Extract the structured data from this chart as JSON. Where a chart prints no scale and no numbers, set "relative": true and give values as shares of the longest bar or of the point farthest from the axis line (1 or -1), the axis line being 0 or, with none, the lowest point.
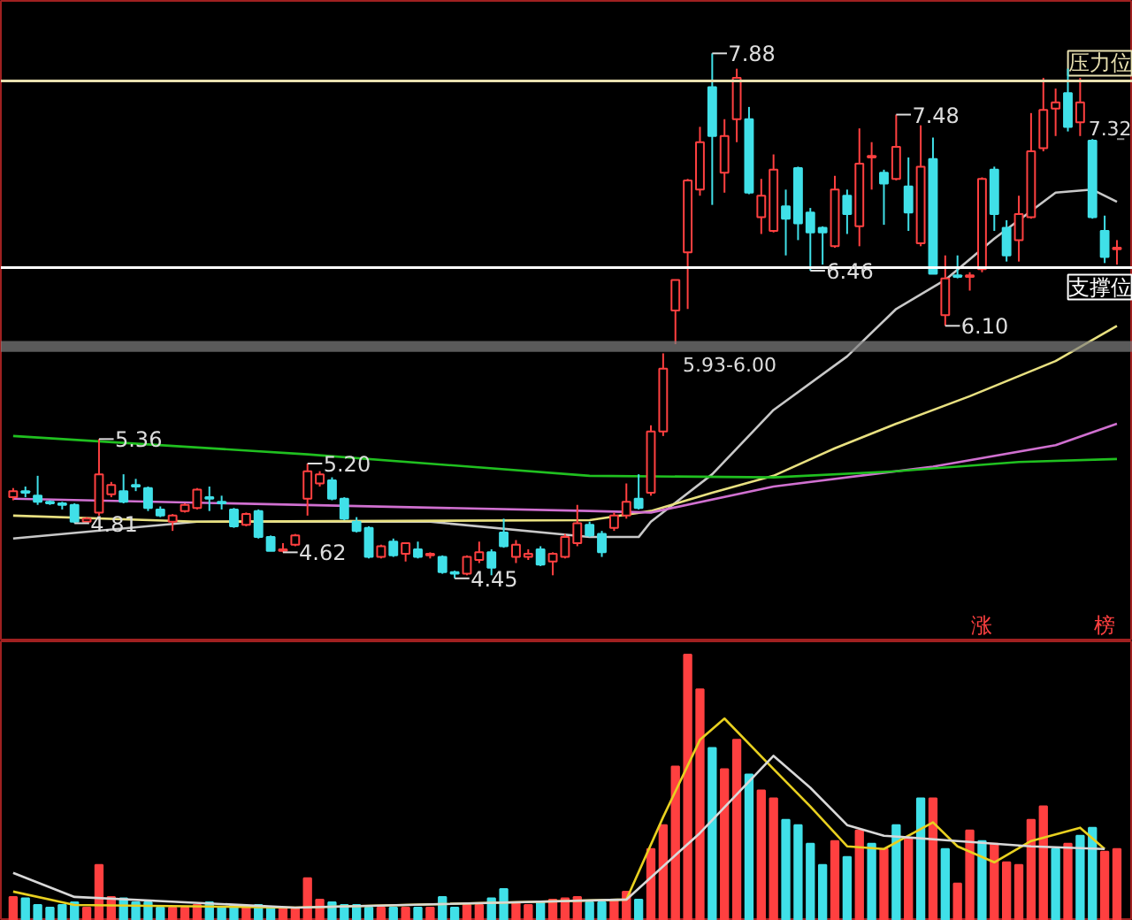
{
  "chart_data": [
    {
      "type": "candlestick",
      "categories": [
        null,
        null,
        null,
        null,
        null,
        null,
        null,
        null,
        null,
        null,
        null,
        null,
        null,
        null,
        null,
        null,
        null,
        null,
        null,
        null,
        null,
        null,
        null,
        null,
        null,
        null,
        null,
        null,
        null,
        null,
        null,
        null,
        null,
        null,
        null,
        null,
        null,
        null,
        null,
        null,
        null,
        null,
        null,
        null,
        null,
        null,
        null,
        null,
        null,
        null,
        null,
        null,
        null,
        null,
        null,
        null,
        null,
        null,
        null,
        null,
        null,
        null,
        null,
        null,
        null,
        null,
        null,
        null,
        null,
        null,
        null,
        null,
        null,
        null,
        null,
        null,
        null,
        null,
        null,
        null,
        null,
        null,
        null,
        null,
        null,
        null,
        null,
        null,
        null,
        null,
        null
      ],
      "ohlc": [
        [
          4.98,
          5.04,
          4.96,
          5.02
        ],
        [
          5.02,
          5.05,
          4.98,
          5.01
        ],
        [
          4.99,
          5.12,
          4.93,
          4.95
        ],
        [
          4.95,
          4.96,
          4.93,
          4.94
        ],
        [
          4.94,
          4.95,
          4.9,
          4.93
        ],
        [
          4.93,
          4.94,
          4.81,
          4.82
        ],
        [
          4.82,
          4.85,
          4.82,
          4.84
        ],
        [
          4.88,
          5.36,
          4.86,
          5.13
        ],
        [
          5.0,
          5.08,
          4.98,
          5.06
        ],
        [
          5.02,
          5.13,
          4.94,
          4.95
        ],
        [
          5.06,
          5.1,
          5.02,
          5.05
        ],
        [
          5.04,
          5.05,
          4.89,
          4.91
        ],
        [
          4.9,
          4.92,
          4.85,
          4.86
        ],
        [
          4.82,
          4.87,
          4.76,
          4.86
        ],
        [
          4.89,
          4.94,
          4.88,
          4.93
        ],
        [
          4.91,
          5.04,
          4.9,
          5.03
        ],
        [
          4.98,
          5.05,
          4.89,
          4.97
        ],
        [
          4.95,
          4.99,
          4.9,
          4.94
        ],
        [
          4.9,
          4.91,
          4.78,
          4.79
        ],
        [
          4.8,
          4.88,
          4.79,
          4.87
        ],
        [
          4.89,
          4.9,
          4.71,
          4.72
        ],
        [
          4.72,
          4.73,
          4.63,
          4.63
        ],
        [
          4.63,
          4.68,
          4.62,
          4.64
        ],
        [
          4.67,
          4.74,
          4.66,
          4.73
        ],
        [
          4.97,
          5.2,
          4.86,
          5.15
        ],
        [
          5.07,
          5.15,
          5.05,
          5.13
        ],
        [
          5.09,
          5.11,
          4.96,
          4.97
        ],
        [
          4.97,
          4.98,
          4.83,
          4.84
        ],
        [
          4.82,
          4.85,
          4.75,
          4.76
        ],
        [
          4.78,
          4.79,
          4.58,
          4.59
        ],
        [
          4.59,
          4.67,
          4.58,
          4.66
        ],
        [
          4.69,
          4.71,
          4.59,
          4.6
        ],
        [
          4.61,
          4.68,
          4.56,
          4.68
        ],
        [
          4.64,
          4.69,
          4.58,
          4.59
        ],
        [
          4.6,
          4.62,
          4.58,
          4.61
        ],
        [
          4.59,
          4.6,
          4.48,
          4.49
        ],
        [
          4.49,
          4.5,
          4.45,
          4.48
        ],
        [
          4.48,
          4.6,
          4.47,
          4.59
        ],
        [
          4.57,
          4.69,
          4.55,
          4.62
        ],
        [
          4.62,
          4.64,
          4.47,
          4.52
        ],
        [
          4.75,
          4.84,
          4.65,
          4.66
        ],
        [
          4.59,
          4.7,
          4.55,
          4.67
        ],
        [
          4.59,
          4.64,
          4.57,
          4.61
        ],
        [
          4.64,
          4.66,
          4.53,
          4.54
        ],
        [
          4.56,
          4.62,
          4.47,
          4.61
        ],
        [
          4.59,
          4.74,
          4.58,
          4.72
        ],
        [
          4.68,
          4.93,
          4.66,
          4.81
        ],
        [
          4.8,
          4.82,
          4.72,
          4.73
        ],
        [
          4.74,
          4.76,
          4.59,
          4.62
        ],
        [
          4.78,
          4.88,
          4.76,
          4.86
        ],
        [
          4.86,
          5.07,
          4.84,
          4.95
        ],
        [
          4.97,
          5.13,
          4.9,
          4.91
        ],
        [
          5.01,
          5.45,
          4.99,
          5.41
        ],
        [
          5.41,
          5.92,
          5.38,
          5.82
        ],
        [
          6.2,
          6.4,
          5.98,
          6.4
        ],
        [
          6.58,
          7.06,
          6.21,
          7.05
        ],
        [
          6.99,
          7.4,
          6.95,
          7.3
        ],
        [
          7.66,
          7.88,
          6.89,
          7.34
        ],
        [
          7.1,
          7.45,
          6.97,
          7.34
        ],
        [
          7.45,
          7.78,
          7.3,
          7.72
        ],
        [
          7.45,
          7.53,
          6.96,
          6.97
        ],
        [
          6.81,
          7.06,
          6.7,
          6.95
        ],
        [
          6.72,
          7.22,
          6.71,
          7.12
        ],
        [
          6.88,
          6.99,
          6.56,
          6.8
        ],
        [
          7.13,
          7.14,
          6.66,
          6.77
        ],
        [
          6.84,
          6.87,
          6.46,
          6.71
        ],
        [
          6.74,
          6.75,
          6.5,
          6.71
        ],
        [
          6.62,
          7.08,
          6.61,
          6.99
        ],
        [
          6.95,
          6.99,
          6.7,
          6.83
        ],
        [
          6.75,
          7.39,
          6.62,
          7.16
        ],
        [
          7.2,
          7.3,
          6.99,
          7.21
        ],
        [
          7.1,
          7.12,
          6.76,
          7.03
        ],
        [
          7.06,
          7.48,
          7.05,
          7.27
        ],
        [
          7.01,
          7.2,
          6.72,
          6.84
        ],
        [
          6.64,
          7.41,
          6.62,
          7.14
        ],
        [
          7.19,
          7.33,
          6.44,
          6.44
        ],
        [
          6.17,
          6.56,
          6.1,
          6.41
        ],
        [
          6.43,
          6.56,
          6.41,
          6.42
        ],
        [
          6.42,
          6.45,
          6.33,
          6.43
        ],
        [
          6.47,
          7.07,
          6.45,
          7.06
        ],
        [
          7.12,
          7.14,
          6.72,
          6.83
        ],
        [
          6.74,
          6.79,
          6.52,
          6.56
        ],
        [
          6.66,
          6.95,
          6.52,
          6.83
        ],
        [
          6.81,
          7.49,
          6.8,
          7.24
        ],
        [
          7.26,
          7.72,
          7.24,
          7.51
        ],
        [
          7.52,
          7.65,
          7.34,
          7.56
        ],
        [
          7.62,
          7.78,
          7.37,
          7.4
        ],
        [
          7.43,
          7.72,
          7.34,
          7.56
        ],
        [
          7.31,
          7.32,
          6.8,
          6.81
        ],
        [
          6.72,
          6.82,
          6.51,
          6.55
        ],
        [
          6.6,
          6.66,
          6.5,
          6.61
        ]
      ],
      "value_labels": [
        null,
        null,
        null,
        null,
        null,
        "4.81",
        null,
        "5.36",
        null,
        null,
        null,
        null,
        null,
        null,
        null,
        null,
        null,
        null,
        null,
        null,
        null,
        null,
        "4.62",
        null,
        "5.20",
        null,
        null,
        null,
        null,
        null,
        null,
        null,
        null,
        null,
        null,
        null,
        "4.45",
        null,
        null,
        null,
        null,
        null,
        null,
        null,
        null,
        null,
        null,
        null,
        null,
        null,
        null,
        null,
        null,
        null,
        null,
        null,
        null,
        "7.88",
        null,
        null,
        null,
        null,
        null,
        null,
        null,
        "6.46",
        null,
        null,
        null,
        null,
        null,
        null,
        "7.48",
        null,
        null,
        null,
        "6.10",
        null,
        null,
        null,
        null,
        null,
        null,
        null,
        null,
        null,
        null,
        null,
        null,
        null,
        null
      ],
      "colors": [
        "#ff4040",
        "#40e0e8",
        "#40e0e8",
        "#40e0e8",
        "#40e0e8",
        "#40e0e8",
        "#ff4040",
        "#ff4040",
        "#ff4040",
        "#40e0e8",
        "#40e0e8",
        "#40e0e8",
        "#40e0e8",
        "#ff4040",
        "#ff4040",
        "#ff4040",
        "#40e0e8",
        "#40e0e8",
        "#40e0e8",
        "#ff4040",
        "#40e0e8",
        "#40e0e8",
        "#ff4040",
        "#ff4040",
        "#ff4040",
        "#ff4040",
        "#40e0e8",
        "#40e0e8",
        "#40e0e8",
        "#40e0e8",
        "#ff4040",
        "#40e0e8",
        "#ff4040",
        "#40e0e8",
        "#ff4040",
        "#40e0e8",
        "#40e0e8",
        "#ff4040",
        "#ff4040",
        "#40e0e8",
        "#40e0e8",
        "#ff4040",
        "#ff4040",
        "#40e0e8",
        "#ff4040",
        "#ff4040",
        "#ff4040",
        "#40e0e8",
        "#40e0e8",
        "#ff4040",
        "#ff4040",
        "#40e0e8",
        "#ff4040",
        "#ff4040",
        "#ff4040",
        "#ff4040",
        "#ff4040",
        "#40e0e8",
        "#ff4040",
        "#ff4040",
        "#40e0e8",
        "#ff4040",
        "#ff4040",
        "#40e0e8",
        "#40e0e8",
        "#40e0e8",
        "#40e0e8",
        "#ff4040",
        "#40e0e8",
        "#ff4040",
        "#ff4040",
        "#40e0e8",
        "#ff4040",
        "#40e0e8",
        "#ff4040",
        "#40e0e8",
        "#ff4040",
        "#40e0e8",
        "#ff4040",
        "#ff4040",
        "#40e0e8",
        "#40e0e8",
        "#ff4040",
        "#ff4040",
        "#ff4040",
        "#ff4040",
        "#40e0e8",
        "#ff4040",
        "#40e0e8",
        "#40e0e8",
        "#ff4040"
      ],
      "series": [
        {
          "type": "line",
          "color": "#c8c8c8",
          "values": [
            4.71,
            null,
            null,
            null,
            null,
            null,
            null,
            null,
            null,
            null,
            null,
            null,
            null,
            null,
            null,
            4.82,
            null,
            null,
            null,
            null,
            null,
            null,
            null,
            null,
            null,
            null,
            null,
            null,
            null,
            null,
            null,
            null,
            null,
            null,
            4.82,
            null,
            null,
            null,
            null,
            null,
            null,
            null,
            null,
            null,
            null,
            null,
            null,
            4.72,
            null,
            null,
            null,
            4.72,
            4.82,
            null,
            null,
            null,
            null,
            5.13,
            null,
            null,
            null,
            null,
            5.55,
            null,
            null,
            null,
            null,
            null,
            5.9,
            null,
            null,
            null,
            6.21,
            null,
            null,
            null,
            6.4,
            null,
            null,
            null,
            6.67,
            null,
            null,
            null,
            null,
            6.97,
            null,
            null,
            6.99,
            null,
            6.91
          ]
        },
        {
          "type": "line",
          "color": "#e8e080",
          "values": [
            4.86,
            null,
            null,
            null,
            null,
            null,
            null,
            null,
            null,
            null,
            null,
            null,
            null,
            null,
            null,
            4.82,
            null,
            null,
            null,
            null,
            null,
            null,
            null,
            null,
            null,
            null,
            null,
            null,
            null,
            null,
            null,
            null,
            null,
            null,
            null,
            null,
            null,
            null,
            null,
            null,
            null,
            null,
            null,
            null,
            null,
            null,
            null,
            4.83,
            null,
            null,
            null,
            null,
            4.89,
            null,
            null,
            null,
            null,
            5.01,
            null,
            null,
            null,
            null,
            5.12,
            null,
            null,
            null,
            null,
            5.3,
            null,
            null,
            null,
            null,
            5.46,
            null,
            null,
            null,
            null,
            null,
            5.64,
            null,
            null,
            null,
            null,
            null,
            null,
            5.87,
            null,
            null,
            null,
            null,
            6.1
          ]
        },
        {
          "type": "line",
          "color": "#d070d0",
          "values": [
            4.97,
            null,
            null,
            null,
            null,
            null,
            null,
            null,
            null,
            null,
            null,
            null,
            null,
            null,
            null,
            null,
            null,
            null,
            null,
            null,
            null,
            null,
            null,
            null,
            null,
            null,
            null,
            null,
            null,
            null,
            null,
            null,
            null,
            null,
            null,
            null,
            null,
            null,
            null,
            null,
            null,
            null,
            null,
            null,
            null,
            null,
            null,
            4.89,
            null,
            null,
            null,
            null,
            4.88,
            null,
            null,
            null,
            null,
            null,
            null,
            null,
            null,
            null,
            5.05,
            null,
            null,
            null,
            null,
            null,
            null,
            null,
            null,
            null,
            null,
            null,
            null,
            5.18,
            null,
            null,
            null,
            null,
            null,
            null,
            null,
            null,
            null,
            5.32,
            null,
            null,
            null,
            null,
            5.46
          ]
        },
        {
          "type": "line",
          "color": "#20c020",
          "values": [
            5.38,
            null,
            null,
            null,
            null,
            null,
            null,
            null,
            null,
            null,
            null,
            null,
            null,
            null,
            null,
            null,
            null,
            null,
            null,
            null,
            null,
            null,
            null,
            null,
            5.26,
            null,
            null,
            null,
            null,
            null,
            null,
            null,
            null,
            null,
            null,
            null,
            null,
            null,
            null,
            null,
            null,
            null,
            null,
            null,
            null,
            null,
            null,
            5.12,
            null,
            null,
            null,
            null,
            null,
            null,
            null,
            null,
            null,
            null,
            null,
            null,
            null,
            null,
            5.11,
            null,
            null,
            null,
            null,
            null,
            null,
            null,
            null,
            null,
            5.15,
            null,
            null,
            null,
            null,
            null,
            null,
            null,
            null,
            null,
            5.21,
            null,
            null,
            null,
            null,
            null,
            null,
            null,
            5.23
          ]
        }
      ],
      "ref_lines": [
        {
          "axis": "y",
          "value": 7.7,
          "label": "压力位",
          "color": "#e8e0b0"
        },
        {
          "axis": "y",
          "value": 6.48,
          "label": "支撑位",
          "color": "#ffffff"
        },
        {
          "axis": "y",
          "value": 7.32,
          "label": "7.32"
        }
      ],
      "bands": [
        {
          "axis": "y",
          "from": 5.93,
          "to": 6.0,
          "label": "5.93-6.00",
          "color": "#808080"
        }
      ],
      "annotations": [
        "涨",
        "榜"
      ]
    },
    {
      "type": "bar",
      "relative": true,
      "categories": [
        null,
        null,
        null,
        null,
        null,
        null,
        null,
        null,
        null,
        null,
        null,
        null,
        null,
        null,
        null,
        null,
        null,
        null,
        null,
        null,
        null,
        null,
        null,
        null,
        null,
        null,
        null,
        null,
        null,
        null,
        null,
        null,
        null,
        null,
        null,
        null,
        null,
        null,
        null,
        null,
        null,
        null,
        null,
        null,
        null,
        null,
        null,
        null,
        null,
        null,
        null,
        null,
        null,
        null,
        null,
        null,
        null,
        null,
        null,
        null,
        null,
        null,
        null,
        null,
        null,
        null,
        null,
        null,
        null,
        null,
        null,
        null,
        null,
        null,
        null,
        null,
        null,
        null,
        null,
        null,
        null,
        null,
        null,
        null,
        null,
        null,
        null,
        null,
        null,
        null,
        null
      ],
      "values": [
        0.09,
        0.085,
        0.06,
        0.05,
        0.06,
        0.07,
        0.05,
        0.21,
        0.09,
        0.085,
        0.07,
        0.07,
        0.05,
        0.05,
        0.05,
        0.06,
        0.07,
        0.05,
        0.06,
        0.05,
        0.06,
        0.05,
        0.05,
        0.05,
        0.16,
        0.08,
        0.07,
        0.06,
        0.06,
        0.05,
        0.05,
        0.05,
        0.05,
        0.05,
        0.05,
        0.09,
        0.05,
        0.06,
        0.06,
        0.085,
        0.12,
        0.07,
        0.06,
        0.07,
        0.08,
        0.085,
        0.09,
        0.07,
        0.07,
        0.08,
        0.11,
        0.08,
        0.27,
        0.36,
        0.58,
        1.0,
        0.87,
        0.65,
        0.57,
        0.68,
        0.55,
        0.49,
        0.46,
        0.38,
        0.36,
        0.29,
        0.21,
        0.3,
        0.24,
        0.34,
        0.29,
        0.27,
        0.36,
        0.31,
        0.46,
        0.46,
        0.27,
        0.14,
        0.34,
        0.3,
        0.29,
        0.22,
        0.21,
        0.38,
        0.43,
        0.27,
        0.29,
        0.32,
        0.35,
        0.26,
        0.27
      ],
      "colors": [
        "#ff4040",
        "#40e0e8",
        "#40e0e8",
        "#40e0e8",
        "#40e0e8",
        "#40e0e8",
        "#ff4040",
        "#ff4040",
        "#ff4040",
        "#40e0e8",
        "#40e0e8",
        "#40e0e8",
        "#40e0e8",
        "#ff4040",
        "#ff4040",
        "#ff4040",
        "#40e0e8",
        "#40e0e8",
        "#40e0e8",
        "#ff4040",
        "#40e0e8",
        "#40e0e8",
        "#ff4040",
        "#ff4040",
        "#ff4040",
        "#ff4040",
        "#40e0e8",
        "#40e0e8",
        "#40e0e8",
        "#40e0e8",
        "#ff4040",
        "#40e0e8",
        "#ff4040",
        "#40e0e8",
        "#ff4040",
        "#40e0e8",
        "#40e0e8",
        "#ff4040",
        "#ff4040",
        "#40e0e8",
        "#40e0e8",
        "#ff4040",
        "#ff4040",
        "#40e0e8",
        "#ff4040",
        "#ff4040",
        "#ff4040",
        "#40e0e8",
        "#40e0e8",
        "#ff4040",
        "#ff4040",
        "#40e0e8",
        "#ff4040",
        "#ff4040",
        "#ff4040",
        "#ff4040",
        "#ff4040",
        "#40e0e8",
        "#ff4040",
        "#ff4040",
        "#40e0e8",
        "#ff4040",
        "#ff4040",
        "#40e0e8",
        "#40e0e8",
        "#40e0e8",
        "#40e0e8",
        "#ff4040",
        "#40e0e8",
        "#ff4040",
        "#40e0e8",
        "#ff4040",
        "#40e0e8",
        "#ff4040",
        "#40e0e8",
        "#ff4040",
        "#40e0e8",
        "#ff4040",
        "#ff4040",
        "#40e0e8",
        "#ff4040",
        "#ff4040",
        "#ff4040",
        "#ff4040",
        "#ff4040",
        "#40e0e8",
        "#ff4040",
        "#40e0e8",
        "#40e0e8",
        "#ff4040",
        "#ff4040"
      ],
      "series": [
        {
          "type": "line",
          "color": "#e8d020",
          "values": [
            0.11,
            null,
            null,
            null,
            null,
            0.06,
            null,
            null,
            null,
            null,
            null,
            null,
            null,
            null,
            null,
            null,
            null,
            null,
            null,
            null,
            null,
            null,
            null,
            0.05,
            null,
            null,
            null,
            null,
            null,
            null,
            null,
            null,
            null,
            null,
            null,
            null,
            null,
            null,
            null,
            null,
            null,
            null,
            null,
            null,
            null,
            null,
            null,
            null,
            null,
            null,
            0.08,
            null,
            null,
            0.39,
            null,
            null,
            0.68,
            null,
            0.76,
            null,
            null,
            null,
            0.57,
            null,
            null,
            0.43,
            null,
            null,
            0.28,
            null,
            null,
            0.27,
            null,
            null,
            null,
            0.37,
            null,
            0.28,
            null,
            null,
            0.22,
            null,
            null,
            0.3,
            null,
            null,
            null,
            0.35,
            null,
            0.27,
            null
          ]
        },
        {
          "type": "line",
          "color": "#d8d8d8",
          "values": [
            0.18,
            null,
            null,
            null,
            null,
            0.09,
            null,
            null,
            null,
            null,
            null,
            null,
            null,
            null,
            null,
            null,
            null,
            null,
            null,
            null,
            null,
            null,
            null,
            0.05,
            null,
            null,
            null,
            null,
            null,
            null,
            null,
            null,
            null,
            null,
            null,
            null,
            null,
            null,
            null,
            null,
            null,
            null,
            null,
            null,
            null,
            null,
            null,
            null,
            null,
            null,
            0.08,
            null,
            null,
            null,
            null,
            null,
            0.33,
            null,
            null,
            null,
            null,
            null,
            0.62,
            null,
            null,
            0.5,
            null,
            null,
            0.36,
            null,
            null,
            0.32,
            null,
            null,
            null,
            null,
            null,
            0.3,
            null,
            null,
            null,
            null,
            null,
            0.28,
            null,
            null,
            null,
            null,
            null,
            0.27,
            null
          ]
        }
      ]
    }
  ]
}
